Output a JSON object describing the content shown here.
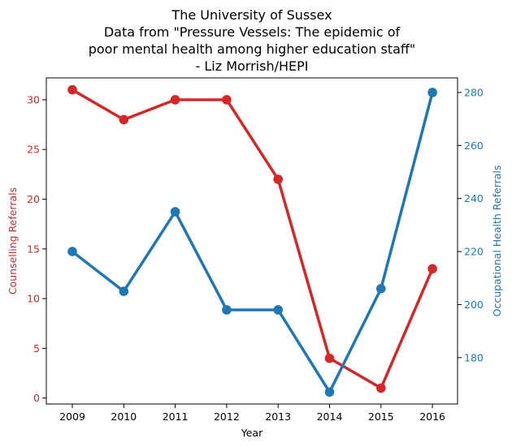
{
  "chart_data": {
    "type": "line",
    "title_lines": [
      "The University of Sussex",
      "Data from \"Pressure Vessels: The epidemic of",
      "poor mental health among higher education staff\"",
      "- Liz Morrish/HEPI"
    ],
    "xlabel": "Year",
    "categories": [
      "2009",
      "2010",
      "2011",
      "2012",
      "2013",
      "2014",
      "2015",
      "2016"
    ],
    "left_axis": {
      "label": "Counselling Referrals",
      "color": "#d62728",
      "ylim": [
        -0.6,
        32.2
      ],
      "ticks": [
        0,
        5,
        10,
        15,
        20,
        25,
        30
      ]
    },
    "right_axis": {
      "label": "Occupational Health Referrals",
      "color": "#1f77b4",
      "ylim": [
        162.5,
        285.5
      ],
      "ticks": [
        180,
        200,
        220,
        240,
        260,
        280
      ]
    },
    "series": [
      {
        "name": "Counselling Referrals",
        "axis": "left",
        "color": "#d62728",
        "values": [
          31,
          28,
          30,
          30,
          22,
          4,
          1,
          13
        ]
      },
      {
        "name": "Occupational Health Referrals",
        "axis": "right",
        "color": "#1f77b4",
        "values": [
          220,
          205,
          235,
          198,
          198,
          167,
          206,
          280
        ]
      }
    ],
    "grid": false,
    "legend": "none"
  }
}
